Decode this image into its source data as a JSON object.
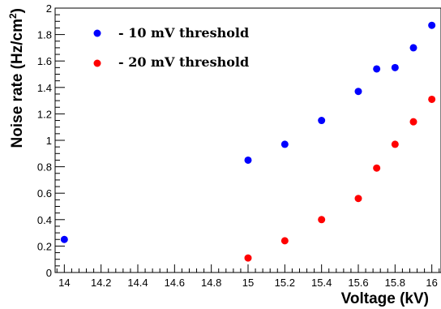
{
  "chart_data": {
    "type": "scatter",
    "xlabel": "Voltage (kV)",
    "ylabel_main": "Noise rate (Hz/cm",
    "ylabel_sup": "2",
    "ylabel_close": ")",
    "xlim": [
      13.95,
      16.05
    ],
    "ylim": [
      0,
      2
    ],
    "x_ticks": [
      "14",
      "14.2",
      "14.4",
      "14.6",
      "14.8",
      "15",
      "15.2",
      "15.4",
      "15.6",
      "15.8",
      "16"
    ],
    "y_ticks": [
      "0",
      "0.2",
      "0.4",
      "0.6",
      "0.8",
      "1",
      "1.2",
      "1.4",
      "1.6",
      "1.8",
      "2"
    ],
    "legend_position": "top-left",
    "series": [
      {
        "name": "- 10 mV threshold",
        "color": "#0000ff",
        "points": [
          {
            "x": 14.0,
            "y": 0.25
          },
          {
            "x": 15.0,
            "y": 0.85
          },
          {
            "x": 15.2,
            "y": 0.97
          },
          {
            "x": 15.4,
            "y": 1.15
          },
          {
            "x": 15.6,
            "y": 1.37
          },
          {
            "x": 15.7,
            "y": 1.54
          },
          {
            "x": 15.8,
            "y": 1.55
          },
          {
            "x": 15.9,
            "y": 1.7
          },
          {
            "x": 16.0,
            "y": 1.87
          }
        ]
      },
      {
        "name": "- 20 mV threshold",
        "color": "#ff0000",
        "points": [
          {
            "x": 15.0,
            "y": 0.11
          },
          {
            "x": 15.2,
            "y": 0.24
          },
          {
            "x": 15.4,
            "y": 0.4
          },
          {
            "x": 15.6,
            "y": 0.56
          },
          {
            "x": 15.7,
            "y": 0.79
          },
          {
            "x": 15.8,
            "y": 0.97
          },
          {
            "x": 15.9,
            "y": 1.14
          },
          {
            "x": 16.0,
            "y": 1.31
          }
        ]
      }
    ]
  }
}
